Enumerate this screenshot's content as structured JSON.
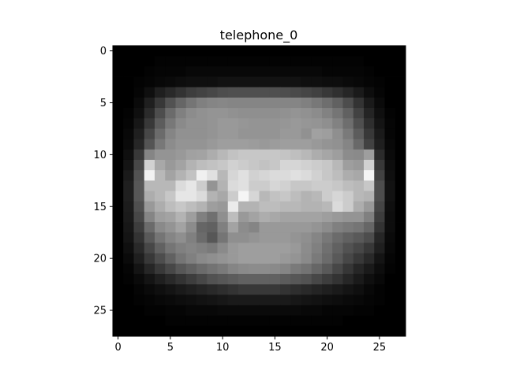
{
  "chart_data": {
    "type": "heatmap",
    "title": "telephone_0",
    "colormap": "gray",
    "shape": [
      28,
      28
    ],
    "x_ticks": [
      0,
      5,
      10,
      15,
      20,
      25
    ],
    "y_ticks": [
      0,
      5,
      10,
      15,
      20,
      25
    ],
    "xlim": [
      -0.5,
      27.5
    ],
    "ylim": [
      27.5,
      -0.5
    ],
    "value_range": [
      0,
      1
    ],
    "values": [
      [
        0,
        0,
        0,
        0,
        0,
        0,
        0,
        0,
        0,
        0,
        0,
        0,
        0,
        0,
        0,
        0,
        0,
        0,
        0,
        0,
        0,
        0,
        0,
        0,
        0,
        0,
        0,
        0
      ],
      [
        0,
        0,
        0,
        0,
        0.01,
        0.01,
        0.01,
        0.01,
        0.01,
        0.01,
        0.01,
        0.01,
        0.01,
        0.01,
        0.01,
        0.01,
        0.01,
        0.01,
        0.01,
        0.01,
        0.01,
        0.01,
        0.01,
        0.01,
        0,
        0,
        0,
        0
      ],
      [
        0,
        0,
        0,
        0.01,
        0.02,
        0.02,
        0.02,
        0.03,
        0.03,
        0.03,
        0.03,
        0.03,
        0.03,
        0.03,
        0.03,
        0.03,
        0.03,
        0.03,
        0.03,
        0.03,
        0.02,
        0.02,
        0.02,
        0.02,
        0.01,
        0,
        0,
        0
      ],
      [
        0,
        0,
        0.01,
        0.02,
        0.03,
        0.04,
        0.05,
        0.06,
        0.06,
        0.06,
        0.07,
        0.07,
        0.07,
        0.07,
        0.07,
        0.07,
        0.07,
        0.07,
        0.06,
        0.06,
        0.05,
        0.05,
        0.04,
        0.03,
        0.02,
        0.01,
        0,
        0
      ],
      [
        0,
        0,
        0.02,
        0.06,
        0.12,
        0.16,
        0.2,
        0.24,
        0.26,
        0.28,
        0.3,
        0.31,
        0.31,
        0.31,
        0.31,
        0.31,
        0.3,
        0.29,
        0.27,
        0.25,
        0.22,
        0.19,
        0.15,
        0.1,
        0.05,
        0.02,
        0,
        0
      ],
      [
        0,
        0,
        0.04,
        0.12,
        0.22,
        0.32,
        0.4,
        0.46,
        0.5,
        0.52,
        0.53,
        0.52,
        0.52,
        0.52,
        0.52,
        0.52,
        0.52,
        0.52,
        0.5,
        0.47,
        0.43,
        0.38,
        0.3,
        0.2,
        0.1,
        0.04,
        0,
        0
      ],
      [
        0,
        0.01,
        0.06,
        0.17,
        0.3,
        0.42,
        0.5,
        0.55,
        0.57,
        0.58,
        0.58,
        0.57,
        0.56,
        0.56,
        0.56,
        0.56,
        0.57,
        0.58,
        0.57,
        0.55,
        0.51,
        0.46,
        0.38,
        0.26,
        0.14,
        0.06,
        0.01,
        0
      ],
      [
        0,
        0.02,
        0.09,
        0.22,
        0.36,
        0.47,
        0.54,
        0.57,
        0.57,
        0.58,
        0.6,
        0.6,
        0.59,
        0.58,
        0.58,
        0.58,
        0.59,
        0.6,
        0.59,
        0.58,
        0.56,
        0.51,
        0.43,
        0.31,
        0.18,
        0.08,
        0.02,
        0
      ],
      [
        0,
        0.03,
        0.12,
        0.28,
        0.42,
        0.52,
        0.57,
        0.57,
        0.57,
        0.58,
        0.6,
        0.6,
        0.58,
        0.58,
        0.58,
        0.58,
        0.6,
        0.6,
        0.57,
        0.63,
        0.62,
        0.56,
        0.48,
        0.36,
        0.22,
        0.1,
        0.02,
        0
      ],
      [
        0,
        0.04,
        0.15,
        0.33,
        0.47,
        0.55,
        0.58,
        0.58,
        0.58,
        0.6,
        0.62,
        0.62,
        0.62,
        0.61,
        0.6,
        0.61,
        0.62,
        0.62,
        0.62,
        0.6,
        0.58,
        0.57,
        0.52,
        0.41,
        0.26,
        0.12,
        0.03,
        0
      ],
      [
        0,
        0.06,
        0.22,
        0.52,
        0.58,
        0.58,
        0.6,
        0.63,
        0.64,
        0.68,
        0.72,
        0.76,
        0.78,
        0.78,
        0.78,
        0.78,
        0.77,
        0.75,
        0.72,
        0.68,
        0.65,
        0.62,
        0.55,
        0.54,
        0.62,
        0.17,
        0.04,
        0
      ],
      [
        0,
        0.08,
        0.28,
        0.82,
        0.66,
        0.6,
        0.64,
        0.7,
        0.74,
        0.76,
        0.78,
        0.82,
        0.8,
        0.78,
        0.76,
        0.78,
        0.84,
        0.84,
        0.82,
        0.8,
        0.78,
        0.72,
        0.62,
        0.6,
        0.82,
        0.22,
        0.05,
        0
      ],
      [
        0,
        0.1,
        0.32,
        0.95,
        0.72,
        0.64,
        0.7,
        0.76,
        0.94,
        0.88,
        0.72,
        0.84,
        0.88,
        0.82,
        0.84,
        0.86,
        0.86,
        0.88,
        0.86,
        0.82,
        0.78,
        0.74,
        0.68,
        0.66,
        0.96,
        0.26,
        0.06,
        0
      ],
      [
        0,
        0.12,
        0.34,
        0.72,
        0.72,
        0.72,
        0.86,
        0.9,
        0.8,
        0.58,
        0.7,
        0.86,
        0.88,
        0.8,
        0.8,
        0.84,
        0.82,
        0.78,
        0.78,
        0.8,
        0.8,
        0.78,
        0.74,
        0.72,
        0.78,
        0.3,
        0.07,
        0
      ],
      [
        0,
        0.12,
        0.34,
        0.68,
        0.72,
        0.78,
        0.9,
        0.9,
        0.86,
        0.7,
        0.66,
        0.8,
        0.96,
        0.84,
        0.72,
        0.76,
        0.78,
        0.74,
        0.7,
        0.72,
        0.8,
        0.84,
        0.8,
        0.72,
        0.7,
        0.3,
        0.07,
        0
      ],
      [
        0,
        0.11,
        0.31,
        0.6,
        0.68,
        0.74,
        0.78,
        0.74,
        0.7,
        0.62,
        0.6,
        0.92,
        0.7,
        0.7,
        0.74,
        0.74,
        0.72,
        0.72,
        0.7,
        0.7,
        0.72,
        0.86,
        0.8,
        0.68,
        0.6,
        0.27,
        0.06,
        0
      ],
      [
        0,
        0.1,
        0.28,
        0.52,
        0.62,
        0.64,
        0.7,
        0.62,
        0.5,
        0.44,
        0.56,
        0.74,
        0.6,
        0.64,
        0.68,
        0.66,
        0.64,
        0.64,
        0.64,
        0.64,
        0.62,
        0.6,
        0.58,
        0.58,
        0.5,
        0.24,
        0.05,
        0
      ],
      [
        0,
        0.09,
        0.24,
        0.42,
        0.54,
        0.58,
        0.64,
        0.55,
        0.4,
        0.38,
        0.5,
        0.64,
        0.55,
        0.52,
        0.6,
        0.6,
        0.6,
        0.6,
        0.6,
        0.58,
        0.55,
        0.5,
        0.48,
        0.46,
        0.4,
        0.2,
        0.05,
        0
      ],
      [
        0,
        0.08,
        0.2,
        0.35,
        0.46,
        0.52,
        0.56,
        0.5,
        0.42,
        0.34,
        0.46,
        0.56,
        0.56,
        0.58,
        0.6,
        0.6,
        0.6,
        0.58,
        0.56,
        0.52,
        0.47,
        0.42,
        0.38,
        0.35,
        0.3,
        0.15,
        0.04,
        0
      ],
      [
        0,
        0.06,
        0.16,
        0.28,
        0.38,
        0.46,
        0.5,
        0.52,
        0.5,
        0.48,
        0.54,
        0.6,
        0.62,
        0.62,
        0.62,
        0.62,
        0.62,
        0.6,
        0.55,
        0.5,
        0.44,
        0.38,
        0.32,
        0.28,
        0.22,
        0.12,
        0.03,
        0
      ],
      [
        0,
        0.04,
        0.12,
        0.22,
        0.3,
        0.38,
        0.46,
        0.5,
        0.54,
        0.56,
        0.58,
        0.6,
        0.62,
        0.62,
        0.62,
        0.62,
        0.6,
        0.58,
        0.54,
        0.48,
        0.42,
        0.35,
        0.28,
        0.22,
        0.16,
        0.08,
        0.02,
        0
      ],
      [
        0,
        0.02,
        0.08,
        0.15,
        0.22,
        0.28,
        0.34,
        0.38,
        0.42,
        0.45,
        0.48,
        0.52,
        0.54,
        0.55,
        0.55,
        0.54,
        0.52,
        0.48,
        0.45,
        0.4,
        0.35,
        0.28,
        0.21,
        0.15,
        0.1,
        0.05,
        0.01,
        0
      ],
      [
        0,
        0.01,
        0.04,
        0.08,
        0.12,
        0.16,
        0.2,
        0.24,
        0.28,
        0.32,
        0.34,
        0.36,
        0.38,
        0.38,
        0.38,
        0.38,
        0.36,
        0.34,
        0.32,
        0.28,
        0.24,
        0.2,
        0.15,
        0.1,
        0.06,
        0.03,
        0,
        0
      ],
      [
        0,
        0,
        0.02,
        0.04,
        0.06,
        0.08,
        0.1,
        0.12,
        0.14,
        0.16,
        0.18,
        0.2,
        0.22,
        0.22,
        0.22,
        0.22,
        0.2,
        0.18,
        0.16,
        0.14,
        0.12,
        0.1,
        0.08,
        0.06,
        0.03,
        0.01,
        0,
        0
      ],
      [
        0,
        0,
        0.01,
        0.02,
        0.03,
        0.04,
        0.05,
        0.06,
        0.07,
        0.08,
        0.09,
        0.1,
        0.1,
        0.1,
        0.1,
        0.1,
        0.1,
        0.09,
        0.08,
        0.07,
        0.06,
        0.05,
        0.04,
        0.03,
        0.02,
        0.01,
        0,
        0
      ],
      [
        0,
        0,
        0,
        0.01,
        0.01,
        0.02,
        0.02,
        0.03,
        0.03,
        0.03,
        0.04,
        0.04,
        0.04,
        0.04,
        0.04,
        0.04,
        0.04,
        0.04,
        0.03,
        0.03,
        0.02,
        0.02,
        0.02,
        0.01,
        0.01,
        0,
        0,
        0
      ],
      [
        0,
        0,
        0,
        0,
        0,
        0.01,
        0.01,
        0.01,
        0.01,
        0.01,
        0.01,
        0.01,
        0.01,
        0.01,
        0.01,
        0.01,
        0.01,
        0.01,
        0.01,
        0.01,
        0.01,
        0.01,
        0,
        0,
        0,
        0,
        0,
        0
      ],
      [
        0,
        0,
        0,
        0,
        0,
        0,
        0,
        0,
        0,
        0,
        0,
        0,
        0,
        0,
        0,
        0,
        0,
        0,
        0,
        0,
        0,
        0,
        0,
        0,
        0,
        0,
        0,
        0
      ]
    ]
  }
}
